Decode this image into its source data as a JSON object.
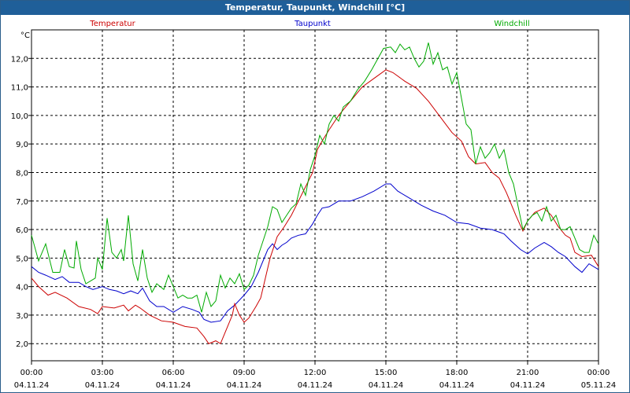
{
  "window": {
    "title": "Temperatur, Taupunkt, Windchill [°C]"
  },
  "chart_data": {
    "type": "line",
    "unit_label": "°C",
    "ylim": [
      1.4,
      13.0
    ],
    "yticks": [
      2.0,
      3.0,
      4.0,
      5.0,
      6.0,
      7.0,
      8.0,
      9.0,
      10.0,
      11.0,
      12.0
    ],
    "ytick_labels": [
      "2,0",
      "3,0",
      "4,0",
      "5,0",
      "6,0",
      "7,0",
      "8,0",
      "9,0",
      "10,0",
      "11,0",
      "12,0"
    ],
    "xlim": [
      0,
      24
    ],
    "xticks": [
      {
        "hour": 0,
        "time": "00:00",
        "date": "04.11.24"
      },
      {
        "hour": 3,
        "time": "03:00",
        "date": "04.11.24"
      },
      {
        "hour": 6,
        "time": "06:00",
        "date": "04.11.24"
      },
      {
        "hour": 9,
        "time": "09:00",
        "date": "04.11.24"
      },
      {
        "hour": 12,
        "time": "12:00",
        "date": "04.11.24"
      },
      {
        "hour": 15,
        "time": "15:00",
        "date": "04.11.24"
      },
      {
        "hour": 18,
        "time": "18:00",
        "date": "04.11.24"
      },
      {
        "hour": 21,
        "time": "21:00",
        "date": "04.11.24"
      },
      {
        "hour": 24,
        "time": "00:00",
        "date": "05.11.24"
      }
    ],
    "grid": true,
    "legend_placement": "top",
    "series": [
      {
        "name": "Temperatur",
        "color": "#cc0000",
        "points": [
          [
            0,
            4.3
          ],
          [
            0.3,
            4.0
          ],
          [
            0.7,
            3.7
          ],
          [
            1,
            3.8
          ],
          [
            1.5,
            3.6
          ],
          [
            2,
            3.3
          ],
          [
            2.5,
            3.2
          ],
          [
            2.8,
            3.05
          ],
          [
            3,
            3.3
          ],
          [
            3.5,
            3.25
          ],
          [
            3.9,
            3.35
          ],
          [
            4.1,
            3.15
          ],
          [
            4.4,
            3.35
          ],
          [
            4.6,
            3.25
          ],
          [
            5,
            3.0
          ],
          [
            5.5,
            2.8
          ],
          [
            6,
            2.75
          ],
          [
            6.5,
            2.6
          ],
          [
            7,
            2.55
          ],
          [
            7.3,
            2.25
          ],
          [
            7.5,
            2.0
          ],
          [
            7.8,
            2.1
          ],
          [
            8,
            2.0
          ],
          [
            8.3,
            2.6
          ],
          [
            8.5,
            3.0
          ],
          [
            8.6,
            3.4
          ],
          [
            8.8,
            3.0
          ],
          [
            9,
            2.75
          ],
          [
            9.2,
            2.9
          ],
          [
            9.5,
            3.3
          ],
          [
            9.7,
            3.6
          ],
          [
            9.9,
            4.3
          ],
          [
            10.1,
            5.0
          ],
          [
            10.4,
            5.75
          ],
          [
            10.7,
            6.1
          ],
          [
            11,
            6.5
          ],
          [
            11.3,
            7.0
          ],
          [
            11.6,
            7.5
          ],
          [
            11.9,
            8.0
          ],
          [
            12.1,
            8.8
          ],
          [
            12.3,
            9.1
          ],
          [
            12.6,
            9.5
          ],
          [
            13,
            10.0
          ],
          [
            13.5,
            10.5
          ],
          [
            14,
            11.0
          ],
          [
            14.5,
            11.3
          ],
          [
            15,
            11.6
          ],
          [
            15.3,
            11.5
          ],
          [
            15.8,
            11.2
          ],
          [
            16.3,
            10.95
          ],
          [
            16.8,
            10.5
          ],
          [
            17.3,
            9.95
          ],
          [
            17.8,
            9.4
          ],
          [
            18.2,
            9.1
          ],
          [
            18.5,
            8.55
          ],
          [
            18.8,
            8.3
          ],
          [
            19.2,
            8.35
          ],
          [
            19.5,
            8.0
          ],
          [
            19.8,
            7.8
          ],
          [
            20.1,
            7.3
          ],
          [
            20.5,
            6.5
          ],
          [
            20.8,
            5.95
          ],
          [
            21,
            6.3
          ],
          [
            21.3,
            6.6
          ],
          [
            21.7,
            6.75
          ],
          [
            22,
            6.5
          ],
          [
            22.3,
            6.1
          ],
          [
            22.6,
            5.8
          ],
          [
            22.8,
            5.7
          ],
          [
            23,
            5.2
          ],
          [
            23.3,
            5.05
          ],
          [
            23.7,
            5.1
          ],
          [
            24,
            4.7
          ]
        ]
      },
      {
        "name": "Taupunkt",
        "color": "#0000cc",
        "points": [
          [
            0,
            4.7
          ],
          [
            0.3,
            4.5
          ],
          [
            0.6,
            4.4
          ],
          [
            1,
            4.25
          ],
          [
            1.3,
            4.35
          ],
          [
            1.6,
            4.15
          ],
          [
            2,
            4.15
          ],
          [
            2.3,
            4.0
          ],
          [
            2.6,
            3.9
          ],
          [
            3,
            4.0
          ],
          [
            3.3,
            3.9
          ],
          [
            3.6,
            3.85
          ],
          [
            3.9,
            3.75
          ],
          [
            4.2,
            3.85
          ],
          [
            4.5,
            3.75
          ],
          [
            4.7,
            3.95
          ],
          [
            5,
            3.5
          ],
          [
            5.3,
            3.3
          ],
          [
            5.6,
            3.3
          ],
          [
            6,
            3.1
          ],
          [
            6.4,
            3.3
          ],
          [
            6.8,
            3.2
          ],
          [
            7.1,
            3.1
          ],
          [
            7.3,
            2.85
          ],
          [
            7.6,
            2.75
          ],
          [
            8,
            2.8
          ],
          [
            8.3,
            3.15
          ],
          [
            8.6,
            3.35
          ],
          [
            9,
            3.7
          ],
          [
            9.3,
            4.0
          ],
          [
            9.6,
            4.5
          ],
          [
            9.8,
            4.9
          ],
          [
            10,
            5.3
          ],
          [
            10.2,
            5.5
          ],
          [
            10.4,
            5.3
          ],
          [
            10.6,
            5.45
          ],
          [
            10.8,
            5.55
          ],
          [
            11,
            5.7
          ],
          [
            11.3,
            5.8
          ],
          [
            11.6,
            5.85
          ],
          [
            11.9,
            6.2
          ],
          [
            12.1,
            6.5
          ],
          [
            12.3,
            6.75
          ],
          [
            12.6,
            6.8
          ],
          [
            13,
            7.0
          ],
          [
            13.5,
            7.0
          ],
          [
            14,
            7.15
          ],
          [
            14.5,
            7.35
          ],
          [
            15,
            7.6
          ],
          [
            15.2,
            7.6
          ],
          [
            15.5,
            7.35
          ],
          [
            16,
            7.1
          ],
          [
            16.5,
            6.85
          ],
          [
            17,
            6.65
          ],
          [
            17.5,
            6.5
          ],
          [
            18,
            6.25
          ],
          [
            18.5,
            6.2
          ],
          [
            19,
            6.05
          ],
          [
            19.5,
            6.0
          ],
          [
            20,
            5.85
          ],
          [
            20.3,
            5.6
          ],
          [
            20.7,
            5.3
          ],
          [
            21,
            5.15
          ],
          [
            21.3,
            5.35
          ],
          [
            21.7,
            5.55
          ],
          [
            22,
            5.4
          ],
          [
            22.3,
            5.2
          ],
          [
            22.6,
            5.05
          ],
          [
            23,
            4.7
          ],
          [
            23.3,
            4.5
          ],
          [
            23.6,
            4.8
          ],
          [
            24,
            4.6
          ]
        ]
      },
      {
        "name": "Windchill",
        "color": "#00aa00",
        "points": [
          [
            0,
            5.8
          ],
          [
            0.3,
            4.9
          ],
          [
            0.6,
            5.5
          ],
          [
            0.9,
            4.5
          ],
          [
            1.2,
            4.5
          ],
          [
            1.4,
            5.3
          ],
          [
            1.6,
            4.7
          ],
          [
            1.8,
            4.65
          ],
          [
            1.9,
            5.6
          ],
          [
            2.1,
            4.6
          ],
          [
            2.3,
            4.1
          ],
          [
            2.5,
            4.2
          ],
          [
            2.7,
            4.3
          ],
          [
            2.8,
            5.0
          ],
          [
            3.0,
            4.6
          ],
          [
            3.2,
            6.4
          ],
          [
            3.4,
            5.2
          ],
          [
            3.6,
            5.0
          ],
          [
            3.8,
            5.3
          ],
          [
            3.9,
            4.9
          ],
          [
            4.1,
            6.5
          ],
          [
            4.3,
            4.8
          ],
          [
            4.5,
            4.2
          ],
          [
            4.7,
            5.3
          ],
          [
            4.9,
            4.3
          ],
          [
            5.1,
            3.8
          ],
          [
            5.3,
            4.1
          ],
          [
            5.6,
            3.9
          ],
          [
            5.8,
            4.4
          ],
          [
            6.0,
            4.0
          ],
          [
            6.2,
            3.6
          ],
          [
            6.4,
            3.7
          ],
          [
            6.6,
            3.6
          ],
          [
            6.8,
            3.6
          ],
          [
            7.0,
            3.7
          ],
          [
            7.2,
            3.1
          ],
          [
            7.4,
            3.8
          ],
          [
            7.6,
            3.3
          ],
          [
            7.8,
            3.5
          ],
          [
            8.0,
            4.4
          ],
          [
            8.2,
            3.95
          ],
          [
            8.4,
            4.3
          ],
          [
            8.6,
            4.1
          ],
          [
            8.8,
            4.45
          ],
          [
            9.0,
            3.9
          ],
          [
            9.2,
            4.05
          ],
          [
            9.4,
            4.4
          ],
          [
            9.6,
            5.1
          ],
          [
            9.8,
            5.6
          ],
          [
            10.0,
            6.1
          ],
          [
            10.2,
            6.8
          ],
          [
            10.4,
            6.7
          ],
          [
            10.6,
            6.25
          ],
          [
            10.8,
            6.5
          ],
          [
            11.0,
            6.75
          ],
          [
            11.2,
            6.9
          ],
          [
            11.4,
            7.6
          ],
          [
            11.6,
            7.2
          ],
          [
            11.8,
            8.1
          ],
          [
            12.0,
            8.6
          ],
          [
            12.2,
            9.3
          ],
          [
            12.4,
            9.0
          ],
          [
            12.6,
            9.7
          ],
          [
            12.8,
            10.0
          ],
          [
            13.0,
            9.8
          ],
          [
            13.2,
            10.3
          ],
          [
            13.5,
            10.5
          ],
          [
            13.8,
            10.9
          ],
          [
            14.1,
            11.2
          ],
          [
            14.4,
            11.6
          ],
          [
            14.6,
            11.9
          ],
          [
            14.9,
            12.35
          ],
          [
            15.2,
            12.4
          ],
          [
            15.4,
            12.2
          ],
          [
            15.6,
            12.5
          ],
          [
            15.8,
            12.3
          ],
          [
            16.0,
            12.4
          ],
          [
            16.2,
            12.0
          ],
          [
            16.4,
            11.7
          ],
          [
            16.6,
            11.9
          ],
          [
            16.8,
            12.55
          ],
          [
            17.0,
            11.8
          ],
          [
            17.2,
            12.2
          ],
          [
            17.4,
            11.6
          ],
          [
            17.6,
            11.7
          ],
          [
            17.8,
            11.1
          ],
          [
            18.0,
            11.5
          ],
          [
            18.2,
            10.6
          ],
          [
            18.4,
            9.7
          ],
          [
            18.6,
            9.5
          ],
          [
            18.8,
            8.3
          ],
          [
            19.0,
            8.9
          ],
          [
            19.2,
            8.5
          ],
          [
            19.4,
            8.7
          ],
          [
            19.6,
            9.0
          ],
          [
            19.8,
            8.5
          ],
          [
            20.0,
            8.8
          ],
          [
            20.2,
            8.0
          ],
          [
            20.4,
            7.6
          ],
          [
            20.6,
            6.8
          ],
          [
            20.8,
            6.0
          ],
          [
            21.0,
            6.3
          ],
          [
            21.2,
            6.5
          ],
          [
            21.4,
            6.6
          ],
          [
            21.6,
            6.3
          ],
          [
            21.8,
            6.8
          ],
          [
            22.0,
            6.3
          ],
          [
            22.2,
            6.5
          ],
          [
            22.4,
            6.0
          ],
          [
            22.6,
            6.0
          ],
          [
            22.8,
            6.1
          ],
          [
            23.0,
            5.7
          ],
          [
            23.2,
            5.3
          ],
          [
            23.4,
            5.2
          ],
          [
            23.6,
            5.2
          ],
          [
            23.8,
            5.8
          ],
          [
            24.0,
            5.5
          ]
        ]
      }
    ]
  }
}
